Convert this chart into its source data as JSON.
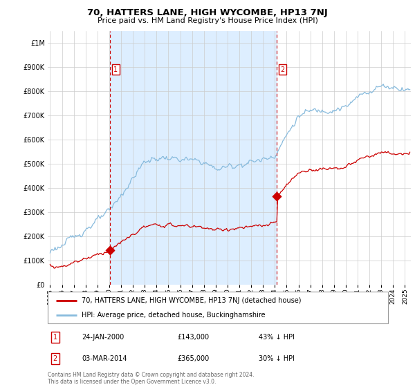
{
  "title": "70, HATTERS LANE, HIGH WYCOMBE, HP13 7NJ",
  "subtitle": "Price paid vs. HM Land Registry's House Price Index (HPI)",
  "property_label": "70, HATTERS LANE, HIGH WYCOMBE, HP13 7NJ (detached house)",
  "hpi_label": "HPI: Average price, detached house, Buckinghamshire",
  "sale1_date": "24-JAN-2000",
  "sale1_price": 143000,
  "sale1_note": "43% ↓ HPI",
  "sale2_date": "03-MAR-2014",
  "sale2_price": 365000,
  "sale2_note": "30% ↓ HPI",
  "sale1_x": 2000.07,
  "sale2_x": 2014.17,
  "footnote": "Contains HM Land Registry data © Crown copyright and database right 2024.\nThis data is licensed under the Open Government Licence v3.0.",
  "property_color": "#cc0000",
  "hpi_color": "#88bbdd",
  "vline_color": "#cc0000",
  "shade_color": "#ddeeff",
  "background_color": "#ffffff",
  "grid_color": "#cccccc",
  "ylim": [
    0,
    1050000
  ],
  "xlim": [
    1994.8,
    2025.5
  ]
}
